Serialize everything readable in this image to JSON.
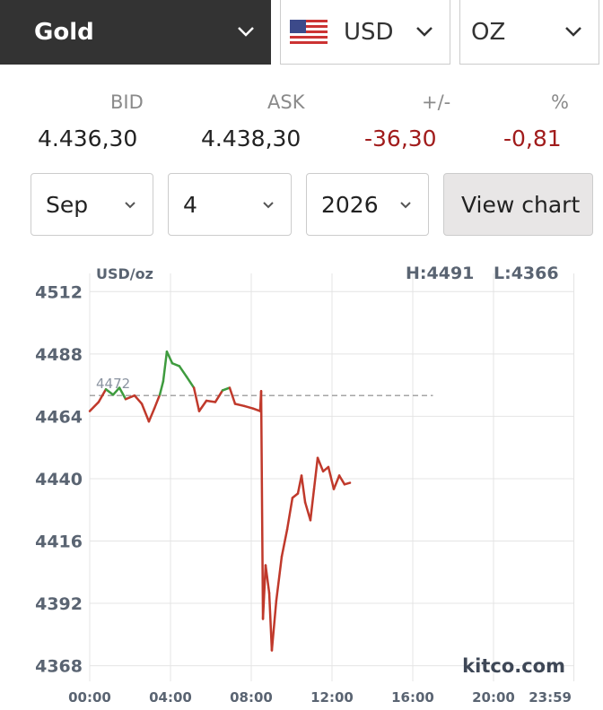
{
  "selectors": {
    "metal": "Gold",
    "currency": "USD",
    "unit": "OZ"
  },
  "quote": {
    "labels": [
      "BID",
      "ASK",
      "+/-",
      "%"
    ],
    "values": [
      "4.436,30",
      "4.438,30",
      "-36,30",
      "-0,81"
    ]
  },
  "date": {
    "month": "Sep",
    "day": "4",
    "year": "2026",
    "button": "View chart"
  },
  "chart_data": {
    "type": "line",
    "unit_label": "USD/oz",
    "high_label": "H:4491",
    "low_label": "L:4366",
    "watermark": "kitco.com",
    "x": [
      0,
      0.44,
      0.8,
      1.16,
      1.47,
      1.78,
      2.22,
      2.58,
      2.93,
      3.2,
      3.47,
      3.64,
      3.82,
      4.09,
      4.44,
      4.8,
      5.16,
      5.42,
      5.78,
      6.22,
      6.58,
      6.93,
      7.2,
      7.64,
      8.09,
      8.44,
      8.49,
      8.58,
      8.71,
      8.89,
      9.02,
      9.24,
      9.51,
      9.78,
      10.04,
      10.31,
      10.49,
      10.67,
      10.93,
      11.11,
      11.29,
      11.56,
      11.82,
      12.09,
      12.36,
      12.62,
      12.89
    ],
    "values": [
      4466,
      4469.5,
      4474.4,
      4472.3,
      4475,
      4470.6,
      4472,
      4468.8,
      4462,
      4467,
      4472.3,
      4477.5,
      4488.9,
      4484.4,
      4483.3,
      4479.2,
      4475,
      4466,
      4470,
      4469.5,
      4474,
      4475,
      4468.8,
      4468,
      4467,
      4466,
      4473.7,
      4386,
      4406.7,
      4396,
      4373.9,
      4393,
      4410,
      4420.5,
      4432.6,
      4434.3,
      4441.2,
      4430.9,
      4424,
      4436,
      4448,
      4442.8,
      4444.5,
      4436,
      4441.2,
      4437.8,
      4438.4
    ],
    "xlim": [
      0,
      24
    ],
    "xticks": [
      {
        "value": 0,
        "label": "00:00"
      },
      {
        "value": 4,
        "label": "04:00"
      },
      {
        "value": 8,
        "label": "08:00"
      },
      {
        "value": 12,
        "label": "12:00"
      },
      {
        "value": 16,
        "label": "16:00"
      },
      {
        "value": 20,
        "label": "20:00"
      },
      {
        "value": 23.98,
        "label": "23:59"
      }
    ],
    "ylim": [
      4362,
      4519
    ],
    "yticks": [
      4368,
      4392,
      4416,
      4440,
      4464,
      4488,
      4512
    ],
    "reference": 4472,
    "up_color": "#3e9b3e",
    "down_color": "#c0392b",
    "grid": true
  }
}
